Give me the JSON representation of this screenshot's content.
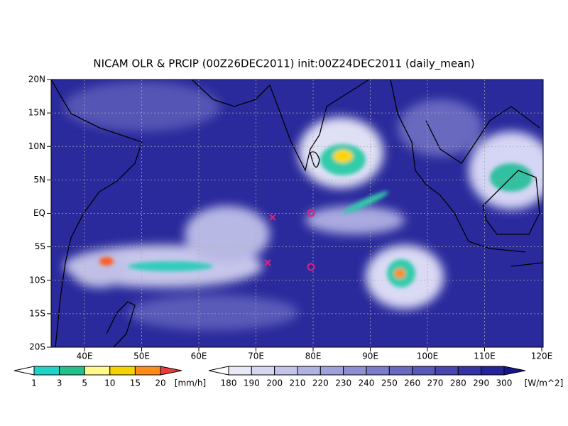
{
  "title": "NICAM OLR & PRCIP (00Z26DEC2011) init:00Z24DEC2011 (daily_mean)",
  "map": {
    "lat_labels": [
      "20N",
      "15N",
      "10N",
      "5N",
      "EQ",
      "5S",
      "10S",
      "15S",
      "20S"
    ],
    "lon_labels": [
      "40E",
      "50E",
      "60E",
      "70E",
      "80E",
      "90E",
      "100E",
      "110E",
      "120E"
    ]
  },
  "legends": {
    "precip": {
      "labels": [
        1,
        3,
        5,
        10,
        15,
        20
      ],
      "unit": "[mm/h]"
    },
    "olr": {
      "labels": [
        180,
        190,
        200,
        210,
        220,
        230,
        240,
        250,
        260,
        270,
        280,
        290,
        300
      ],
      "unit": "[W/m^2]"
    }
  }
}
